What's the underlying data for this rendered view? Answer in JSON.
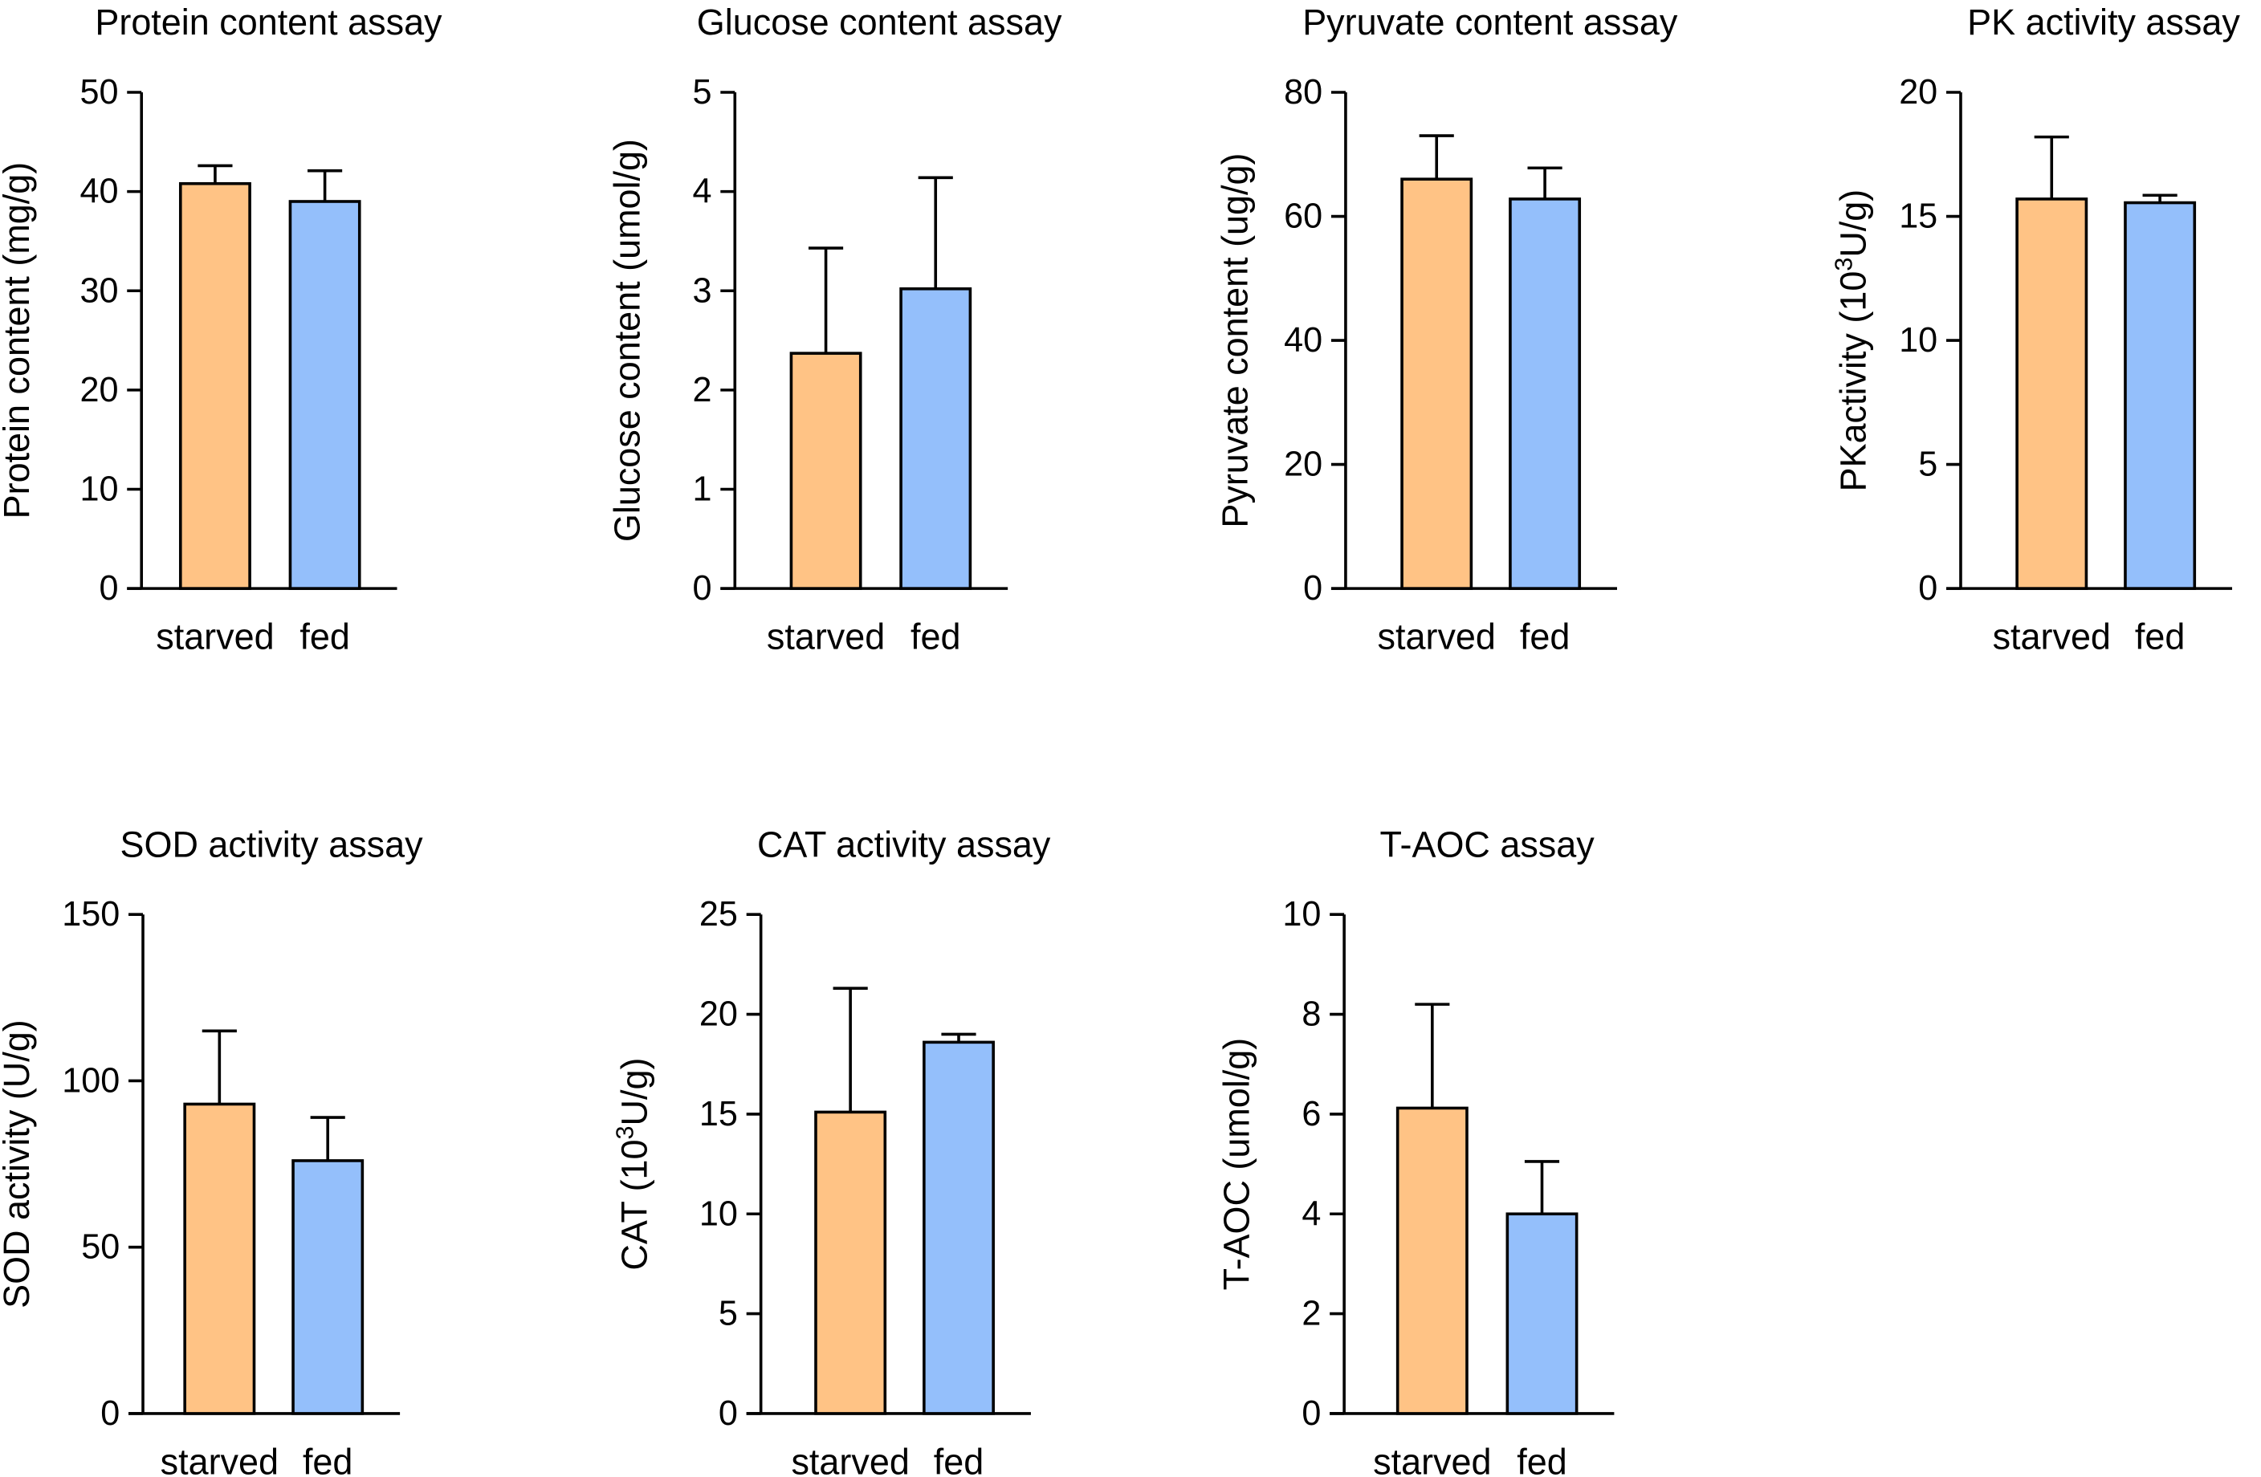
{
  "colors": {
    "starved": "#ffc385",
    "fed": "#94bffb",
    "axis": "#000000"
  },
  "chart_data": [
    {
      "type": "bar",
      "title": "Protein content assay",
      "ylabel": "Protein content (mg/g)",
      "ylim": [
        0,
        50
      ],
      "yticks": [
        0,
        10,
        20,
        30,
        40,
        50
      ],
      "categories": [
        "starved",
        "fed"
      ],
      "values": [
        40.8,
        39.0
      ],
      "errors": [
        1.8,
        3.1
      ]
    },
    {
      "type": "bar",
      "title": "Glucose content assay",
      "ylabel": "Glucose content (umol/g)",
      "ylim": [
        0,
        5
      ],
      "yticks": [
        0,
        1,
        2,
        3,
        4,
        5
      ],
      "categories": [
        "starved",
        "fed"
      ],
      "values": [
        2.37,
        3.02
      ],
      "errors": [
        1.06,
        1.12
      ]
    },
    {
      "type": "bar",
      "title": "Pyruvate content assay",
      "ylabel": "Pyruvate content (ug/g)",
      "ylim": [
        0,
        80
      ],
      "yticks": [
        0,
        20,
        40,
        60,
        80
      ],
      "categories": [
        "starved",
        "fed"
      ],
      "values": [
        66.0,
        62.8
      ],
      "errors": [
        7.0,
        5.0
      ]
    },
    {
      "type": "bar",
      "title": "PK activity assay",
      "ylabel_pre": "PKactivity (10",
      "ylabel_sup": "3",
      "ylabel_post": "U/g)",
      "ylim": [
        0,
        20
      ],
      "yticks": [
        0,
        5,
        10,
        15,
        20
      ],
      "categories": [
        "starved",
        "fed"
      ],
      "values": [
        15.7,
        15.55
      ],
      "errors": [
        2.5,
        0.3
      ]
    },
    {
      "type": "bar",
      "title": "SOD activity assay",
      "ylabel": "SOD activity (U/g)",
      "ylim": [
        0,
        150
      ],
      "yticks": [
        0,
        50,
        100,
        150
      ],
      "categories": [
        "starved",
        "fed"
      ],
      "values": [
        93,
        76
      ],
      "errors": [
        22,
        13
      ]
    },
    {
      "type": "bar",
      "title": "CAT activity assay",
      "ylabel_pre": "CAT (10",
      "ylabel_sup": "3",
      "ylabel_post": "U/g)",
      "ylim": [
        0,
        25
      ],
      "yticks": [
        0,
        5,
        10,
        15,
        20,
        25
      ],
      "categories": [
        "starved",
        "fed"
      ],
      "values": [
        15.1,
        18.6
      ],
      "errors": [
        6.2,
        0.4
      ]
    },
    {
      "type": "bar",
      "title": "T-AOC assay",
      "ylabel": "T-AOC (umol/g)",
      "ylim": [
        0,
        10
      ],
      "yticks": [
        0,
        2,
        4,
        6,
        8,
        10
      ],
      "categories": [
        "starved",
        "fed"
      ],
      "values": [
        6.12,
        4.0
      ],
      "errors": [
        2.08,
        1.05
      ]
    }
  ]
}
